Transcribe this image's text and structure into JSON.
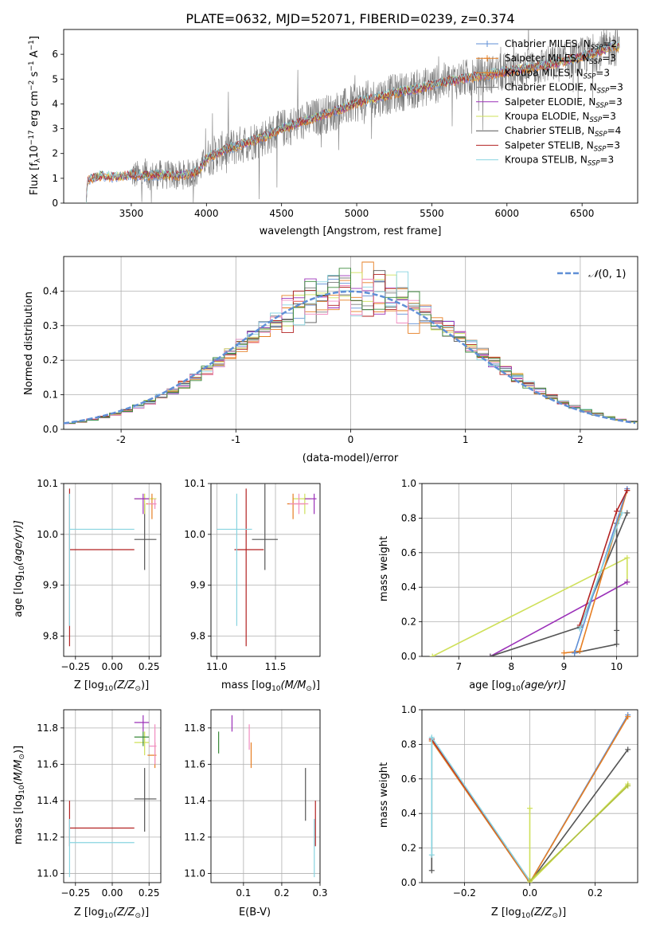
{
  "chart_data": [
    {
      "type": "line",
      "title": "PLATE=0632, MJD=52071, FIBERID=0239, z=0.374",
      "xlabel": "wavelength [Angstrom, rest frame]",
      "ylabel": "Flux [f",
      "ylabel_sub": "λ",
      "ylabel_mid": "10",
      "ylabel_sup1": "−17",
      "ylabel_mid2": " erg cm",
      "ylabel_sup2": "−2",
      "ylabel_mid3": " s",
      "ylabel_sup3": "−1",
      "ylabel_end": " A",
      "ylabel_sup4": "−1",
      "ylabel_close": "]",
      "xlim": [
        3050,
        6870
      ],
      "ylim": [
        0,
        7
      ],
      "xticks": [
        3500,
        4000,
        4500,
        5000,
        5500,
        6000,
        6500
      ],
      "yticks": [
        0,
        1,
        2,
        3,
        4,
        5,
        6
      ],
      "legend_position": "top-right",
      "legend": [
        {
          "label": "Chabrier MILES, N",
          "sub": "SSP",
          "suffix": "=2",
          "color": "#5f8fd6",
          "marker": true
        },
        {
          "label": "Salpeter MILES, N",
          "sub": "SSP",
          "suffix": "=3",
          "color": "#e67e22",
          "marker": true
        },
        {
          "label": "Kroupa MILES, N",
          "sub": "SSP",
          "suffix": "=3",
          "color": "#e67e22",
          "marker": true
        },
        {
          "label": "Chabrier ELODIE, N",
          "sub": "SSP",
          "suffix": "=3",
          "color": "#7a7a7a",
          "marker": false
        },
        {
          "label": "Salpeter ELODIE, N",
          "sub": "SSP",
          "suffix": "=3",
          "color": "#9b30b8",
          "marker": false
        },
        {
          "label": "Kroupa ELODIE, N",
          "sub": "SSP",
          "suffix": "=3",
          "color": "#cfe05a",
          "marker": false
        },
        {
          "label": "Chabrier STELIB, N",
          "sub": "SSP",
          "suffix": "=4",
          "color": "#555555",
          "marker": false
        },
        {
          "label": "Salpeter STELIB, N",
          "sub": "SSP",
          "suffix": "=3",
          "color": "#b22222",
          "marker": false
        },
        {
          "label": "Kroupa STELIB, N",
          "sub": "SSP",
          "suffix": "=3",
          "color": "#88d4e0",
          "marker": false
        }
      ],
      "spectrum_anchors": {
        "x": [
          3200,
          3210,
          3300,
          3400,
          3500,
          3600,
          3700,
          3800,
          3900,
          3950,
          4000,
          4100,
          4200,
          4300,
          4400,
          4500,
          4600,
          4700,
          4800,
          4900,
          5000,
          5100,
          5200,
          5300,
          5400,
          5500,
          5600,
          5700,
          5800,
          5900,
          6000,
          6100,
          6200,
          6300,
          6400,
          6500,
          6600,
          6700
        ],
        "y": [
          0,
          0.95,
          1.1,
          1.05,
          1.15,
          1.1,
          1.15,
          1.1,
          1.2,
          1.3,
          1.8,
          2.1,
          2.3,
          2.5,
          2.7,
          3.0,
          3.2,
          3.4,
          3.6,
          3.8,
          4.05,
          4.2,
          4.35,
          4.5,
          4.6,
          4.75,
          4.9,
          5.0,
          5.1,
          5.2,
          5.3,
          5.4,
          5.5,
          5.6,
          5.75,
          5.9,
          6.1,
          6.3
        ]
      }
    },
    {
      "type": "histogram",
      "xlabel": "(data-model)/error",
      "ylabel": "Normed distribution",
      "xlim": [
        -2.5,
        2.5
      ],
      "ylim": [
        0,
        0.5
      ],
      "xticks": [
        -2,
        -1,
        0,
        1,
        2
      ],
      "yticks": [
        0.0,
        0.1,
        0.2,
        0.3,
        0.4
      ],
      "legend_label": "(0, 1)",
      "legend_symbol": "𝒩",
      "gaussian": {
        "mean": 0,
        "sigma": 1,
        "color": "#5f8fd6"
      },
      "bin_width": 0.1,
      "series_colors": [
        "#5f8fd6",
        "#e67e22",
        "#e67e22",
        "#7a7a7a",
        "#9b30b8",
        "#cfe05a",
        "#555555",
        "#b22222",
        "#88d4e0",
        "#f08cc0",
        "#3a8a3a"
      ]
    },
    {
      "type": "errorbar",
      "xlabel": "Z [log",
      "xlabel_sub": "10",
      "xlabel_end": "(Z/Z",
      "xlabel_sub2": "⊙",
      "xlabel_close": ")]",
      "ylabel": "age  [log",
      "ylabel_sub": "10",
      "ylabel_end": "(age/yr)]",
      "xlim": [
        -0.33,
        0.33
      ],
      "ylim": [
        9.76,
        10.1
      ],
      "xticks": [
        -0.25,
        0.0,
        0.25
      ],
      "xticklabels": [
        "−0.25",
        "0.00",
        "0.25"
      ],
      "yticks": [
        9.8,
        9.9,
        10.0,
        10.1
      ],
      "points": [
        {
          "x": -0.29,
          "y": 9.97,
          "xl": -0.29,
          "xh": 0.15,
          "yl": 9.78,
          "yh": 10.09,
          "color": "#b22222"
        },
        {
          "x": -0.29,
          "y": 10.01,
          "xl": -0.29,
          "xh": 0.15,
          "yl": 9.82,
          "yh": 10.08,
          "color": "#88d4e0"
        },
        {
          "x": 0.22,
          "y": 9.99,
          "xl": 0.15,
          "xh": 0.3,
          "yl": 9.93,
          "yh": 10.06,
          "color": "#555555"
        },
        {
          "x": 0.22,
          "y": 10.07,
          "xl": 0.15,
          "xh": 0.3,
          "yl": 10.04,
          "yh": 10.08,
          "color": "#cfe05a"
        },
        {
          "x": 0.27,
          "y": 10.06,
          "xl": 0.23,
          "xh": 0.3,
          "yl": 10.03,
          "yh": 10.08,
          "color": "#e67e22"
        },
        {
          "x": 0.29,
          "y": 10.06,
          "xl": 0.24,
          "xh": 0.3,
          "yl": 10.05,
          "yh": 10.07,
          "color": "#f08cc0"
        },
        {
          "x": 0.21,
          "y": 10.07,
          "xl": 0.15,
          "xh": 0.25,
          "yl": 10.04,
          "yh": 10.08,
          "color": "#9b30b8"
        }
      ]
    },
    {
      "type": "errorbar",
      "xlabel": "mass [log",
      "xlabel_sub": "10",
      "xlabel_end": "(M/M",
      "xlabel_sub2": "⊙",
      "xlabel_close": ")]",
      "xlim": [
        10.95,
        11.88
      ],
      "ylim": [
        9.76,
        10.1
      ],
      "xticks": [
        11.0,
        11.5
      ],
      "xticklabels": [
        "11.0",
        "11.5"
      ],
      "yticks": [
        9.8,
        9.9,
        10.0,
        10.1
      ],
      "points": [
        {
          "x": 11.25,
          "y": 9.97,
          "xl": 11.15,
          "xh": 11.4,
          "yl": 9.78,
          "yh": 10.09,
          "color": "#b22222"
        },
        {
          "x": 11.17,
          "y": 10.01,
          "xl": 11.0,
          "xh": 11.3,
          "yl": 9.82,
          "yh": 10.08,
          "color": "#88d4e0"
        },
        {
          "x": 11.41,
          "y": 9.99,
          "xl": 11.3,
          "xh": 11.52,
          "yl": 9.93,
          "yh": 10.13,
          "color": "#555555"
        },
        {
          "x": 11.75,
          "y": 10.07,
          "xl": 11.65,
          "xh": 11.8,
          "yl": 10.04,
          "yh": 10.08,
          "color": "#cfe05a"
        },
        {
          "x": 11.65,
          "y": 10.06,
          "xl": 11.6,
          "xh": 11.75,
          "yl": 10.03,
          "yh": 10.08,
          "color": "#e67e22"
        },
        {
          "x": 11.7,
          "y": 10.06,
          "xl": 11.62,
          "xh": 11.78,
          "yl": 10.04,
          "yh": 10.08,
          "color": "#f08cc0"
        },
        {
          "x": 11.83,
          "y": 10.07,
          "xl": 11.75,
          "xh": 11.85,
          "yl": 10.04,
          "yh": 10.08,
          "color": "#9b30b8"
        }
      ]
    },
    {
      "type": "line",
      "xlabel": "age  [log",
      "xlabel_sub": "10",
      "xlabel_end": "(age/yr)]",
      "ylabel": "mass weight",
      "xlim": [
        6.3,
        10.4
      ],
      "ylim": [
        0,
        1.0
      ],
      "xticks": [
        7,
        8,
        9,
        10
      ],
      "yticks": [
        0.0,
        0.2,
        0.4,
        0.6,
        0.8,
        1.0
      ],
      "yticklabels": [
        "0.0",
        "0.2",
        "0.4",
        "0.6",
        "0.8",
        "1.0"
      ],
      "series": [
        {
          "x": [
            6.5,
            10.2,
            10.2
          ],
          "y": [
            0.0,
            0.57,
            0.43
          ],
          "color": "#cfe05a"
        },
        {
          "x": [
            7.6,
            10.2
          ],
          "y": [
            0.0,
            0.43
          ],
          "color": "#9b30b8"
        },
        {
          "x": [
            7.6,
            9.3,
            10.2
          ],
          "y": [
            0.0,
            0.17,
            0.83
          ],
          "color": "#555555"
        },
        {
          "x": [
            9.2,
            10.0,
            10.0,
            10.0
          ],
          "y": [
            0.02,
            0.07,
            0.77,
            0.15
          ],
          "color": "#555555"
        },
        {
          "x": [
            9.0,
            9.3,
            10.2
          ],
          "y": [
            0.02,
            0.03,
            0.96
          ],
          "color": "#e67e22"
        },
        {
          "x": [
            9.2,
            10.2
          ],
          "y": [
            0.02,
            0.97
          ],
          "color": "#5f8fd6"
        },
        {
          "x": [
            9.3,
            10.0,
            10.2
          ],
          "y": [
            0.18,
            0.84,
            0.96
          ],
          "color": "#b22222"
        },
        {
          "x": [
            9.3,
            10.1
          ],
          "y": [
            0.16,
            0.83
          ],
          "color": "#88d4e0"
        }
      ]
    },
    {
      "type": "errorbar",
      "xlabel": "Z [log",
      "xlabel_sub": "10",
      "xlabel_end": "(Z/Z",
      "xlabel_sub2": "⊙",
      "xlabel_close": ")]",
      "ylabel": "mass [log",
      "ylabel_sub": "10",
      "ylabel_end": "(M/M",
      "ylabel_sub2": "⊙",
      "ylabel_close": ")]",
      "xlim": [
        -0.33,
        0.33
      ],
      "ylim": [
        10.95,
        11.9
      ],
      "xticks": [
        -0.25,
        0.0,
        0.25
      ],
      "xticklabels": [
        "−0.25",
        "0.00",
        "0.25"
      ],
      "yticks": [
        11.0,
        11.2,
        11.4,
        11.6,
        11.8
      ],
      "points": [
        {
          "x": -0.29,
          "y": 11.25,
          "xl": -0.29,
          "xh": 0.15,
          "yl": 11.15,
          "yh": 11.4,
          "color": "#b22222"
        },
        {
          "x": -0.29,
          "y": 11.17,
          "xl": -0.29,
          "xh": 0.15,
          "yl": 10.98,
          "yh": 11.3,
          "color": "#88d4e0"
        },
        {
          "x": 0.22,
          "y": 11.41,
          "xl": 0.15,
          "xh": 0.3,
          "yl": 11.23,
          "yh": 11.58,
          "color": "#555555"
        },
        {
          "x": 0.22,
          "y": 11.72,
          "xl": 0.15,
          "xh": 0.25,
          "yl": 11.65,
          "yh": 11.78,
          "color": "#cfe05a"
        },
        {
          "x": 0.29,
          "y": 11.65,
          "xl": 0.24,
          "xh": 0.3,
          "yl": 11.58,
          "yh": 11.72,
          "color": "#e67e22"
        },
        {
          "x": 0.29,
          "y": 11.7,
          "xl": 0.25,
          "xh": 0.3,
          "yl": 11.6,
          "yh": 11.82,
          "color": "#f08cc0"
        },
        {
          "x": 0.21,
          "y": 11.83,
          "xl": 0.15,
          "xh": 0.25,
          "yl": 11.78,
          "yh": 11.87,
          "color": "#9b30b8"
        },
        {
          "x": 0.21,
          "y": 11.75,
          "xl": 0.15,
          "xh": 0.25,
          "yl": 11.7,
          "yh": 11.78,
          "color": "#3a8a3a"
        }
      ]
    },
    {
      "type": "errorbar",
      "xlabel": "E(B-V)",
      "xlim": [
        0.015,
        0.3
      ],
      "ylim": [
        10.95,
        11.9
      ],
      "xticks": [
        0.1,
        0.2,
        0.3
      ],
      "xticklabels": [
        "0.1",
        "0.2",
        "0.3"
      ],
      "yticks": [
        11.0,
        11.2,
        11.4,
        11.6,
        11.8
      ],
      "points": [
        {
          "x": 0.035,
          "y": 11.72,
          "xl": 0.035,
          "xh": 0.035,
          "yl": 11.66,
          "yh": 11.78,
          "color": "#3a8a3a"
        },
        {
          "x": 0.07,
          "y": 11.83,
          "xl": 0.07,
          "xh": 0.07,
          "yl": 11.78,
          "yh": 11.87,
          "color": "#9b30b8"
        },
        {
          "x": 0.115,
          "y": 11.75,
          "xl": 0.115,
          "xh": 0.115,
          "yl": 11.68,
          "yh": 11.82,
          "color": "#f08cc0"
        },
        {
          "x": 0.12,
          "y": 11.66,
          "xl": 0.12,
          "xh": 0.12,
          "yl": 11.58,
          "yh": 11.72,
          "color": "#e67e22"
        },
        {
          "x": 0.262,
          "y": 11.41,
          "xl": 0.262,
          "xh": 0.262,
          "yl": 11.29,
          "yh": 11.58,
          "color": "#555555"
        },
        {
          "x": 0.288,
          "y": 11.25,
          "xl": 0.288,
          "xh": 0.288,
          "yl": 11.15,
          "yh": 11.4,
          "color": "#b22222"
        },
        {
          "x": 0.285,
          "y": 11.17,
          "xl": 0.285,
          "xh": 0.285,
          "yl": 10.98,
          "yh": 11.3,
          "color": "#88d4e0"
        }
      ]
    },
    {
      "type": "line",
      "xlabel": "Z [log",
      "xlabel_sub": "10",
      "xlabel_end": "(Z/Z",
      "xlabel_sub2": "⊙",
      "xlabel_close": ")]",
      "ylabel": "mass weight",
      "xlim": [
        -0.33,
        0.33
      ],
      "ylim": [
        0,
        1.0
      ],
      "xticks": [
        -0.2,
        0.0,
        0.2
      ],
      "xticklabels": [
        "−0.2",
        "0.0",
        "0.2"
      ],
      "yticks": [
        0.0,
        0.2,
        0.4,
        0.6,
        0.8,
        1.0
      ],
      "yticklabels": [
        "0.0",
        "0.2",
        "0.4",
        "0.6",
        "0.8",
        "1.0"
      ],
      "series": [
        {
          "x": [
            -0.3,
            -0.3,
            0.0,
            0.3
          ],
          "y": [
            0.07,
            0.82,
            0.0,
            0.77
          ],
          "color": "#555555"
        },
        {
          "x": [
            -0.3,
            0.0,
            0.3
          ],
          "y": [
            0.83,
            0.0,
            0.97
          ],
          "color": "#5f8fd6"
        },
        {
          "x": [
            -0.3,
            0.0,
            0.3
          ],
          "y": [
            0.82,
            0.0,
            0.96
          ],
          "color": "#e67e22"
        },
        {
          "x": [
            -0.3,
            0.0
          ],
          "y": [
            0.83,
            0.01
          ],
          "color": "#b22222"
        },
        {
          "x": [
            -0.3,
            -0.3,
            0.0
          ],
          "y": [
            0.16,
            0.84,
            0.01
          ],
          "color": "#88d4e0"
        },
        {
          "x": [
            0.0,
            0.0,
            0.3
          ],
          "y": [
            0.43,
            0.0,
            0.57
          ],
          "color": "#cfe05a"
        },
        {
          "x": [
            0.0,
            0.3
          ],
          "y": [
            0.01,
            0.56
          ],
          "color": "#b0c040"
        }
      ]
    }
  ]
}
